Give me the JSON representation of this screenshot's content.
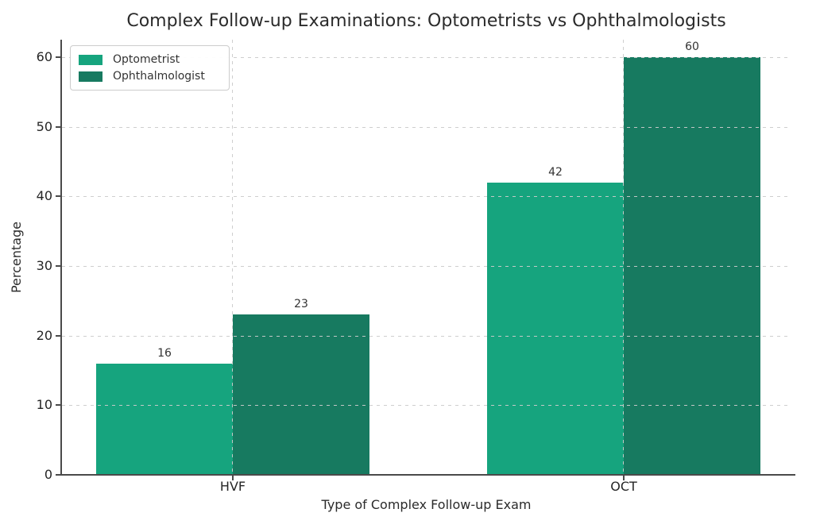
{
  "chart_data": {
    "type": "bar",
    "title": "Complex Follow-up Examinations: Optometrists vs Ophthalmologists",
    "xlabel": "Type of Complex Follow-up Exam",
    "ylabel": "Percentage",
    "categories": [
      "HVF",
      "OCT"
    ],
    "series": [
      {
        "name": "Optometrist",
        "color": "#16a47e",
        "values": [
          16,
          42
        ]
      },
      {
        "name": "Ophthalmologist",
        "color": "#177a60",
        "values": [
          23,
          60
        ]
      }
    ],
    "bar_value_labels": [
      [
        16,
        42
      ],
      [
        23,
        60
      ]
    ],
    "ylim": [
      0,
      60
    ],
    "yticks": [
      0,
      10,
      20,
      30,
      40,
      50,
      60
    ],
    "grid": {
      "horizontal": true,
      "vertical": true,
      "style": "dashed",
      "color": "#cbcbcb",
      "drawn_over_bars": true
    },
    "legend_position": "upper left",
    "spines": {
      "left": true,
      "bottom": true,
      "top": false,
      "right": false
    }
  }
}
